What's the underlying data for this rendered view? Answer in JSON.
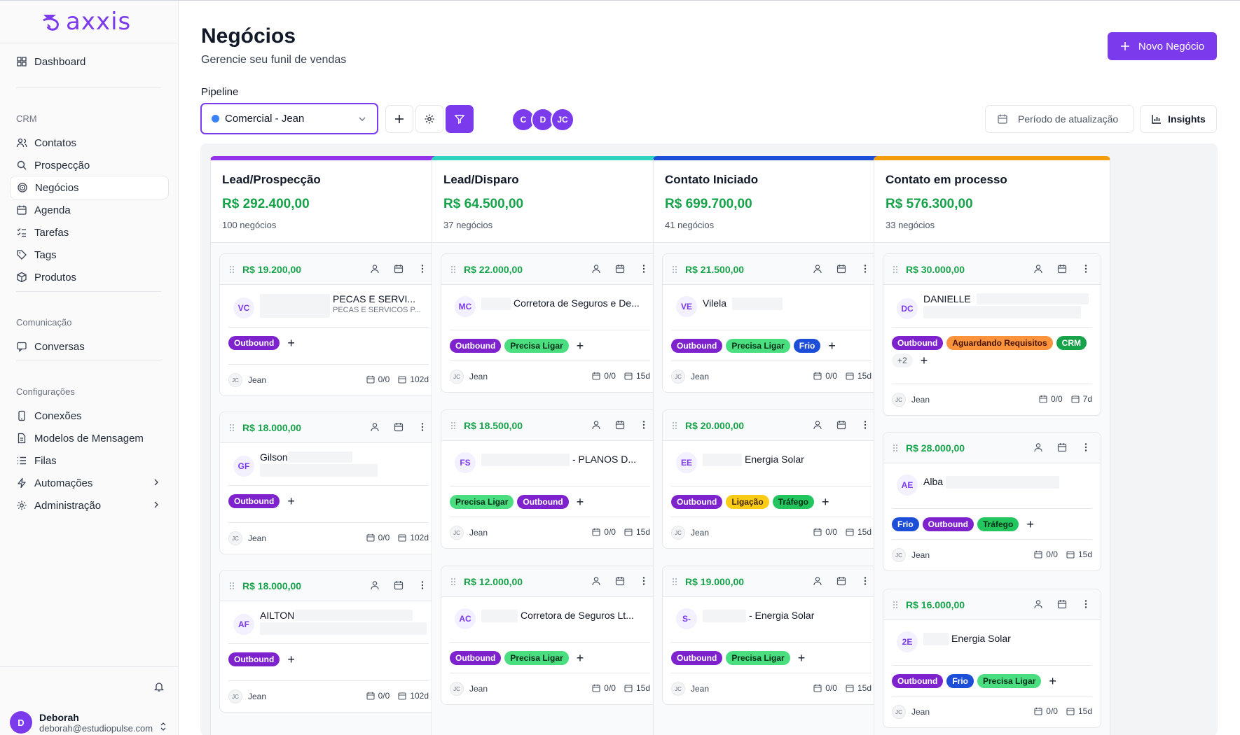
{
  "brand": {
    "name": "axxis",
    "color": "#7c3aed"
  },
  "sidebar": {
    "dashboard": "Dashboard",
    "crm_label": "CRM",
    "crm_items": [
      {
        "label": "Contatos",
        "icon": "users-icon"
      },
      {
        "label": "Prospecção",
        "icon": "search-icon"
      },
      {
        "label": "Negócios",
        "icon": "target-icon",
        "active": true
      },
      {
        "label": "Agenda",
        "icon": "calendar-icon"
      },
      {
        "label": "Tarefas",
        "icon": "checklist-icon"
      },
      {
        "label": "Tags",
        "icon": "tag-icon"
      },
      {
        "label": "Produtos",
        "icon": "package-icon"
      }
    ],
    "comm_label": "Comunicação",
    "comm_items": [
      {
        "label": "Conversas",
        "icon": "chat-icon"
      }
    ],
    "config_label": "Configurações",
    "config_items": [
      {
        "label": "Conexões",
        "icon": "phone-icon"
      },
      {
        "label": "Modelos de Mensagem",
        "icon": "file-icon"
      },
      {
        "label": "Filas",
        "icon": "list-icon"
      },
      {
        "label": "Automações",
        "icon": "zap-icon"
      },
      {
        "label": "Administração",
        "icon": "gear-icon"
      }
    ],
    "user": {
      "initial": "D",
      "name": "Deborah",
      "email": "deborah@estudiopulse.com"
    }
  },
  "header": {
    "title": "Negócios",
    "subtitle": "Gerencie seu funil de vendas",
    "new_button": "Novo Negócio"
  },
  "toolbar": {
    "pipeline_label": "Pipeline",
    "pipeline_value": "Comercial - Jean",
    "avatars": [
      "C",
      "D",
      "JC"
    ],
    "period_button": "Período de atualização",
    "insights_button": "Insights"
  },
  "tag_colors": {
    "Outbound": {
      "bg": "#7e22ce",
      "fg": "#ffffff"
    },
    "Precisa Ligar": {
      "bg": "#4ade80",
      "fg": "#052e16"
    },
    "Frio": {
      "bg": "#1d4ed8",
      "fg": "#ffffff"
    },
    "Aguardando Requisitos": {
      "bg": "#fb923c",
      "fg": "#431407"
    },
    "CRM": {
      "bg": "#16a34a",
      "fg": "#ffffff"
    },
    "Ligação": {
      "bg": "#facc15",
      "fg": "#422006"
    },
    "Tráfego": {
      "bg": "#22c55e",
      "fg": "#052e16"
    }
  },
  "columns": [
    {
      "title": "Lead/Prospecção",
      "total": "R$ 292.400,00",
      "count": "100 negócios",
      "color": "#9333ea",
      "cards": [
        {
          "amount": "R$ 19.200,00",
          "initials": "VC",
          "name": "PECAS E SERVI...",
          "sub": "PECAS E SERVICOS P...",
          "tags": [
            "Outbound"
          ],
          "owner_initials": "JC",
          "owner": "Jean",
          "tasks": "0/0",
          "age": "102d"
        },
        {
          "amount": "R$ 18.000,00",
          "initials": "GF",
          "name": "Gilson",
          "sub": "",
          "tags": [
            "Outbound"
          ],
          "owner_initials": "JC",
          "owner": "Jean",
          "tasks": "0/0",
          "age": "102d"
        },
        {
          "amount": "R$ 18.000,00",
          "initials": "AF",
          "name": "AILTON",
          "sub": "",
          "tags": [
            "Outbound"
          ],
          "owner_initials": "JC",
          "owner": "Jean",
          "tasks": "0/0",
          "age": "102d"
        }
      ]
    },
    {
      "title": "Lead/Disparo",
      "total": "R$ 64.500,00",
      "count": "37 negócios",
      "color": "#2dd4bf",
      "cards": [
        {
          "amount": "R$ 22.000,00",
          "initials": "MC",
          "name": "Corretora de Seguros e De...",
          "sub": "",
          "tags": [
            "Outbound",
            "Precisa Ligar"
          ],
          "owner_initials": "JC",
          "owner": "Jean",
          "tasks": "0/0",
          "age": "15d"
        },
        {
          "amount": "R$ 18.500,00",
          "initials": "FS",
          "name": "- PLANOS D...",
          "sub": "",
          "tags": [
            "Precisa Ligar",
            "Outbound"
          ],
          "owner_initials": "JC",
          "owner": "Jean",
          "tasks": "0/0",
          "age": "15d"
        },
        {
          "amount": "R$ 12.000,00",
          "initials": "AC",
          "name": "Corretora de Seguros Lt...",
          "sub": "",
          "tags": [
            "Outbound",
            "Precisa Ligar"
          ],
          "owner_initials": "JC",
          "owner": "Jean",
          "tasks": "0/0",
          "age": "15d"
        }
      ]
    },
    {
      "title": "Contato Iniciado",
      "total": "R$ 699.700,00",
      "count": "41 negócios",
      "color": "#1d4ed8",
      "cards": [
        {
          "amount": "R$ 21.500,00",
          "initials": "VE",
          "name": "Vilela",
          "sub": "",
          "tags": [
            "Outbound",
            "Precisa Ligar",
            "Frio"
          ],
          "owner_initials": "JC",
          "owner": "Jean",
          "tasks": "0/0",
          "age": "15d"
        },
        {
          "amount": "R$ 20.000,00",
          "initials": "EE",
          "name": "Energia Solar",
          "sub": "",
          "tags": [
            "Outbound",
            "Ligação",
            "Tráfego"
          ],
          "owner_initials": "JC",
          "owner": "Jean",
          "tasks": "0/0",
          "age": "15d"
        },
        {
          "amount": "R$ 19.000,00",
          "initials": "S-",
          "name": "- Energia Solar",
          "sub": "",
          "tags": [
            "Outbound",
            "Precisa Ligar"
          ],
          "owner_initials": "JC",
          "owner": "Jean",
          "tasks": "0/0",
          "age": "15d"
        }
      ]
    },
    {
      "title": "Contato em processo",
      "total": "R$ 576.300,00",
      "count": "33 negócios",
      "color": "#f59e0b",
      "cards": [
        {
          "amount": "R$ 30.000,00",
          "initials": "DC",
          "name": "DANIELLE",
          "sub": "",
          "tags": [
            "Outbound",
            "Aguardando Requisitos",
            "CRM"
          ],
          "more": "+2",
          "owner_initials": "JC",
          "owner": "Jean",
          "tasks": "0/0",
          "age": "7d"
        },
        {
          "amount": "R$ 28.000,00",
          "initials": "AE",
          "name": "Alba",
          "sub": "",
          "tags": [
            "Frio",
            "Outbound",
            "Tráfego"
          ],
          "owner_initials": "JC",
          "owner": "Jean",
          "tasks": "0/0",
          "age": "15d"
        },
        {
          "amount": "R$ 16.000,00",
          "initials": "2E",
          "name": "Energia Solar",
          "sub": "",
          "tags": [
            "Outbound",
            "Frio",
            "Precisa Ligar"
          ],
          "owner_initials": "JC",
          "owner": "Jean",
          "tasks": "0/0",
          "age": "15d"
        }
      ]
    }
  ]
}
